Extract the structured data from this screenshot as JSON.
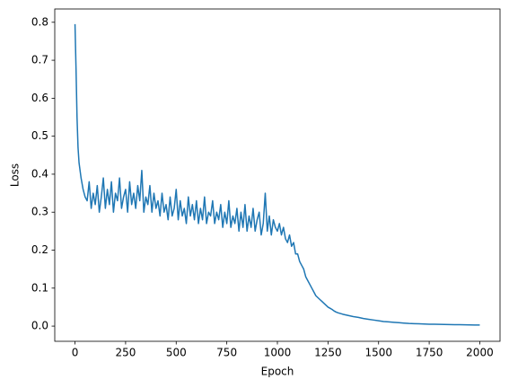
{
  "chart_data": {
    "type": "line",
    "xlabel": "Epoch",
    "ylabel": "Loss",
    "color": "#1f77b4",
    "x": [
      0,
      5,
      10,
      15,
      20,
      25,
      30,
      40,
      50,
      60,
      70,
      80,
      90,
      100,
      110,
      120,
      130,
      140,
      150,
      160,
      170,
      180,
      190,
      200,
      210,
      220,
      230,
      240,
      250,
      260,
      270,
      280,
      290,
      300,
      310,
      320,
      330,
      340,
      350,
      360,
      370,
      380,
      390,
      400,
      410,
      420,
      430,
      440,
      450,
      460,
      470,
      480,
      490,
      500,
      510,
      520,
      530,
      540,
      550,
      560,
      570,
      580,
      590,
      600,
      610,
      620,
      630,
      640,
      650,
      660,
      670,
      680,
      690,
      700,
      710,
      720,
      730,
      740,
      750,
      760,
      770,
      780,
      790,
      800,
      810,
      820,
      830,
      840,
      850,
      860,
      870,
      880,
      890,
      900,
      910,
      920,
      930,
      940,
      950,
      960,
      970,
      980,
      990,
      1000,
      1010,
      1020,
      1030,
      1040,
      1050,
      1060,
      1070,
      1080,
      1090,
      1100,
      1110,
      1120,
      1130,
      1140,
      1150,
      1160,
      1170,
      1180,
      1190,
      1200,
      1210,
      1220,
      1230,
      1240,
      1250,
      1260,
      1270,
      1280,
      1290,
      1300,
      1325,
      1350,
      1375,
      1400,
      1425,
      1450,
      1475,
      1500,
      1525,
      1550,
      1575,
      1600,
      1625,
      1650,
      1675,
      1700,
      1725,
      1750,
      1775,
      1800,
      1825,
      1850,
      1875,
      1900,
      1925,
      1950,
      1975,
      2000
    ],
    "values": [
      0.795,
      0.68,
      0.55,
      0.47,
      0.43,
      0.41,
      0.39,
      0.36,
      0.34,
      0.33,
      0.38,
      0.31,
      0.35,
      0.32,
      0.37,
      0.3,
      0.34,
      0.39,
      0.31,
      0.36,
      0.32,
      0.38,
      0.3,
      0.35,
      0.33,
      0.39,
      0.31,
      0.34,
      0.36,
      0.3,
      0.38,
      0.32,
      0.35,
      0.31,
      0.37,
      0.33,
      0.41,
      0.3,
      0.34,
      0.32,
      0.37,
      0.3,
      0.35,
      0.31,
      0.33,
      0.29,
      0.35,
      0.3,
      0.32,
      0.28,
      0.34,
      0.29,
      0.31,
      0.36,
      0.28,
      0.33,
      0.29,
      0.31,
      0.27,
      0.34,
      0.29,
      0.32,
      0.28,
      0.33,
      0.27,
      0.31,
      0.28,
      0.34,
      0.27,
      0.3,
      0.29,
      0.33,
      0.27,
      0.3,
      0.28,
      0.32,
      0.26,
      0.3,
      0.27,
      0.33,
      0.26,
      0.29,
      0.27,
      0.31,
      0.25,
      0.3,
      0.26,
      0.32,
      0.25,
      0.29,
      0.26,
      0.31,
      0.25,
      0.28,
      0.3,
      0.24,
      0.27,
      0.35,
      0.25,
      0.29,
      0.24,
      0.28,
      0.26,
      0.25,
      0.27,
      0.24,
      0.26,
      0.23,
      0.22,
      0.24,
      0.21,
      0.22,
      0.19,
      0.19,
      0.17,
      0.16,
      0.15,
      0.13,
      0.12,
      0.11,
      0.1,
      0.09,
      0.08,
      0.075,
      0.07,
      0.065,
      0.06,
      0.055,
      0.05,
      0.047,
      0.044,
      0.04,
      0.037,
      0.035,
      0.031,
      0.028,
      0.025,
      0.023,
      0.02,
      0.018,
      0.016,
      0.014,
      0.012,
      0.011,
      0.01,
      0.009,
      0.008,
      0.007,
      0.0065,
      0.006,
      0.0055,
      0.005,
      0.0048,
      0.0045,
      0.0042,
      0.004,
      0.0038,
      0.0036,
      0.0034,
      0.0032,
      0.003,
      0.0028
    ],
    "xlim": [
      -100,
      2100
    ],
    "ylim": [
      -0.04,
      0.835
    ],
    "xticks": [
      0,
      250,
      500,
      750,
      1000,
      1250,
      1500,
      1750,
      2000
    ],
    "yticks": [
      {
        "value": 0,
        "label": "0.0"
      },
      0.1,
      0.2,
      0.3,
      0.4,
      0.5,
      0.6,
      0.7,
      0.8
    ]
  }
}
